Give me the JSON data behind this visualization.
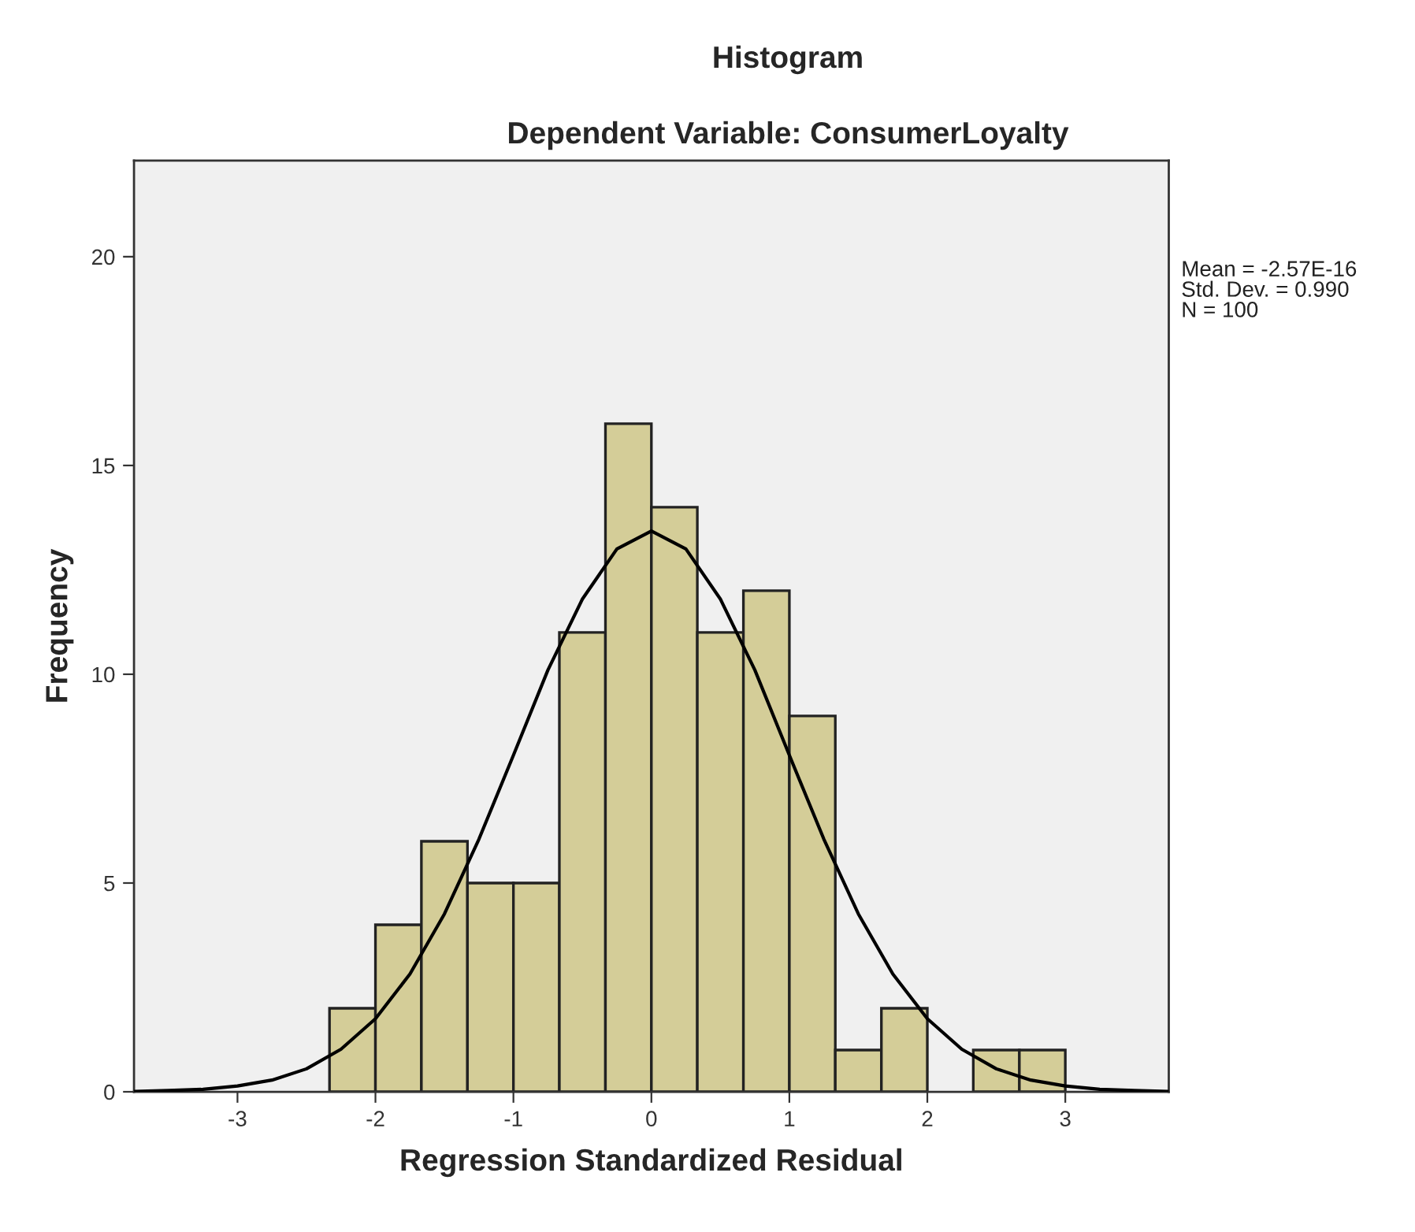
{
  "chart_data": {
    "type": "histogram",
    "title": "Histogram",
    "subtitle": "Dependent Variable: ConsumerLoyalty",
    "xlabel": "Regression Standardized Residual",
    "ylabel": "Frequency",
    "bins": [
      -2.333,
      -2,
      -1.667,
      -1.333,
      -1,
      -0.667,
      -0.333,
      0,
      0.333,
      0.667,
      1,
      1.333,
      1.667,
      2,
      2.333,
      2.667,
      3
    ],
    "values": [
      2,
      4,
      6,
      5,
      5,
      11,
      16,
      14,
      11,
      12,
      9,
      1,
      2,
      0,
      1,
      1
    ],
    "color": "#d4cd98",
    "series": [
      {
        "type": "line",
        "color": "#000000",
        "x": [
          -3.75,
          -3.5,
          -3.25,
          -3,
          -2.75,
          -2.5,
          -2.25,
          -2,
          -1.75,
          -1.5,
          -1.25,
          -1,
          -0.75,
          -0.5,
          -0.25,
          0,
          0.25,
          0.5,
          0.75,
          1,
          1.25,
          1.5,
          1.75,
          2,
          2.25,
          2.5,
          2.75,
          3,
          3.25,
          3.5,
          3.75
        ],
        "values": [
          0.01,
          0.03,
          0.06,
          0.14,
          0.28,
          0.55,
          1.02,
          1.75,
          2.82,
          4.26,
          6.05,
          8.06,
          10.1,
          11.8,
          13.0,
          13.43,
          13.0,
          11.8,
          10.1,
          8.06,
          6.05,
          4.26,
          2.82,
          1.75,
          1.02,
          0.55,
          0.28,
          0.14,
          0.06,
          0.03,
          0.01
        ]
      }
    ],
    "xlim": [
      -3.75,
      3.75
    ],
    "ylim": [
      0,
      22.3
    ],
    "xticks": [
      -3,
      -2,
      -1,
      0,
      1,
      2,
      3
    ],
    "yticks": [
      0,
      5,
      10,
      15,
      20
    ],
    "grid": false,
    "legend": false,
    "annotations": [
      "Mean = -2.57E-16",
      "Std. Dev. = 0.990",
      "N = 100"
    ]
  }
}
